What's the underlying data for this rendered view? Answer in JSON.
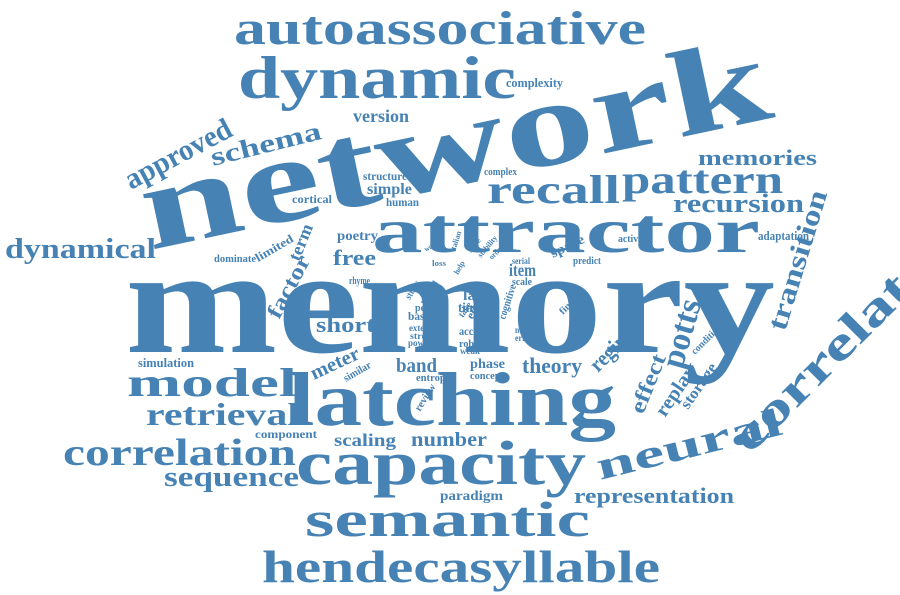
{
  "word_cloud": {
    "color": "#4682b4",
    "background": "#ffffff",
    "words": [
      "memory",
      "network",
      "attractor",
      "latching",
      "capacity",
      "semantic",
      "hendecasyllable",
      "autoassociative",
      "dynamic",
      "recall",
      "pattern",
      "model",
      "correlation",
      "neural",
      "correlated",
      "retrieval",
      "sequence",
      "dynamical",
      "approved",
      "schema",
      "recursion",
      "memories",
      "transition",
      "potts",
      "effect",
      "replay",
      "storage",
      "regime",
      "theory",
      "short",
      "free",
      "factor",
      "term",
      "meter",
      "band",
      "phase",
      "scaling",
      "number",
      "representation",
      "paradigm",
      "simulation",
      "component",
      "review",
      "entropy",
      "version",
      "complexity",
      "structure",
      "simple",
      "human",
      "cortical",
      "poetry",
      "limited",
      "dominate",
      "rhyme",
      "similar",
      "complex",
      "space",
      "item",
      "scale",
      "predict",
      "activity",
      "adaptation",
      "condition",
      "serial",
      "cognitive",
      "finding",
      "noise",
      "error",
      "law",
      "time",
      "basis",
      "extent",
      "strong",
      "accent",
      "robust",
      "weak",
      "concept",
      "power",
      "edge",
      "take",
      "peer",
      "study",
      "also",
      "fail",
      "help",
      "order",
      "italian",
      "word",
      "stability",
      "state",
      "loss"
    ]
  }
}
